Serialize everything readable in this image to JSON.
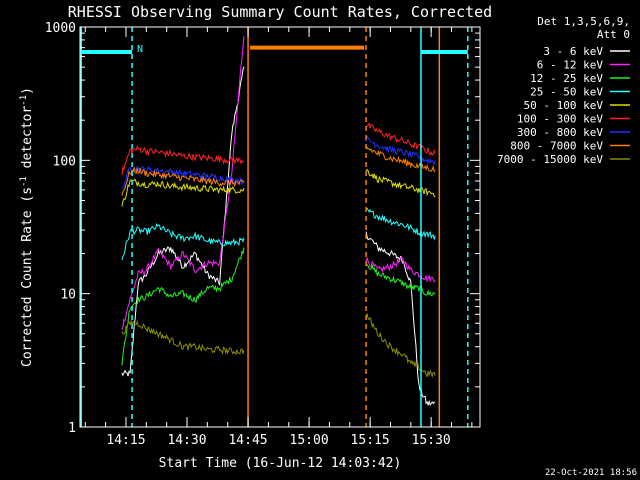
{
  "chart_data": {
    "type": "line",
    "title": "RHESSI Observing Summary Count Rates, Corrected",
    "xlabel": "Start Time (16-Jun-12 14:03:42)",
    "ylabel_main": "Corrected Count Rate (s",
    "ylabel_sup1": "-1",
    "ylabel_mid": " detector",
    "ylabel_sup2": "-1",
    "ylabel_end": ")",
    "yscale": "log",
    "ylim": [
      1,
      1000
    ],
    "y_ticks": [
      {
        "value": 1,
        "label": "1"
      },
      {
        "value": 10,
        "label": "10"
      },
      {
        "value": 100,
        "label": "100"
      },
      {
        "value": 1000,
        "label": "1000"
      }
    ],
    "xlim": [
      "14:03:42",
      "15:42:00"
    ],
    "x_ticks": [
      {
        "value": "14:15",
        "label": "14:15"
      },
      {
        "value": "14:30",
        "label": "14:30"
      },
      {
        "value": "14:45",
        "label": "14:45"
      },
      {
        "value": "15:00",
        "label": "15:00"
      },
      {
        "value": "15:15",
        "label": "15:15"
      },
      {
        "value": "15:30",
        "label": "15:30"
      }
    ],
    "legend_header": [
      "Det 1,3,5,6,9,",
      "Att 0"
    ],
    "legend_placement": "right",
    "footer_date": "22-Oct-2021 18:56",
    "night_marker_label": "N",
    "series": [
      {
        "name": "3 - 6 keV",
        "color": "#ffffff",
        "x": [
          "14:14:00",
          "14:16:00",
          "14:18:00",
          "14:20:00",
          "14:23:00",
          "14:26:00",
          "14:29:00",
          "14:32:00",
          "14:35:00",
          "14:38:00",
          "14:41:00",
          "14:44:00",
          "15:14:00",
          "15:17:00",
          "15:20:00",
          "15:23:00",
          "15:25:00",
          "15:27:00",
          "15:29:00",
          "15:31:00"
        ],
        "y": [
          2.5,
          2.5,
          12,
          14,
          20,
          22,
          16,
          20,
          14,
          12,
          160,
          500,
          28,
          22,
          20,
          18,
          12,
          2,
          1.5,
          1.5
        ]
      },
      {
        "name": "6 - 12 keV",
        "color": "#ff22ff",
        "x": [
          "14:14:00",
          "14:16:00",
          "14:18:00",
          "14:20:00",
          "14:23:00",
          "14:26:00",
          "14:29:00",
          "14:32:00",
          "14:35:00",
          "14:38:00",
          "14:41:00",
          "14:44:00",
          "15:14:00",
          "15:17:00",
          "15:20:00",
          "15:23:00",
          "15:25:00",
          "15:27:00",
          "15:29:00",
          "15:31:00"
        ],
        "y": [
          5.5,
          9,
          14,
          15,
          21,
          16,
          20,
          15,
          17,
          17,
          80,
          900,
          18,
          15,
          16,
          18,
          15,
          14,
          13,
          13
        ]
      },
      {
        "name": "12 - 25 keV",
        "color": "#22ee22",
        "x": [
          "14:14:00",
          "14:16:00",
          "14:18:00",
          "14:20:00",
          "14:23:00",
          "14:26:00",
          "14:29:00",
          "14:32:00",
          "14:35:00",
          "14:38:00",
          "14:41:00",
          "14:44:00",
          "15:14:00",
          "15:17:00",
          "15:20:00",
          "15:23:00",
          "15:25:00",
          "15:27:00",
          "15:29:00",
          "15:31:00"
        ],
        "y": [
          3,
          8,
          9,
          9.5,
          11,
          9.5,
          10,
          9,
          11,
          11,
          13,
          22,
          17,
          14,
          13,
          12,
          11,
          11,
          10,
          10
        ]
      },
      {
        "name": "25 - 50 keV",
        "color": "#22ffff",
        "x": [
          "14:14:00",
          "14:16:00",
          "14:18:00",
          "14:20:00",
          "14:23:00",
          "14:26:00",
          "14:29:00",
          "14:32:00",
          "14:35:00",
          "14:38:00",
          "14:41:00",
          "14:44:00",
          "15:14:00",
          "15:17:00",
          "15:20:00",
          "15:23:00",
          "15:25:00",
          "15:27:00",
          "15:29:00",
          "15:31:00"
        ],
        "y": [
          18,
          29,
          30,
          29,
          32,
          28,
          26,
          27,
          25,
          24,
          24,
          25,
          42,
          38,
          35,
          33,
          31,
          29,
          28,
          27
        ]
      },
      {
        "name": "50 - 100 keV",
        "color": "#dddd00",
        "x": [
          "14:14:00",
          "14:16:00",
          "14:18:00",
          "14:20:00",
          "14:23:00",
          "14:26:00",
          "14:29:00",
          "14:32:00",
          "14:35:00",
          "14:38:00",
          "14:41:00",
          "14:44:00",
          "15:14:00",
          "15:17:00",
          "15:20:00",
          "15:23:00",
          "15:25:00",
          "15:27:00",
          "15:29:00",
          "15:31:00"
        ],
        "y": [
          45,
          70,
          68,
          66,
          67,
          64,
          63,
          62,
          61,
          60,
          60,
          60,
          85,
          72,
          68,
          64,
          62,
          60,
          58,
          56
        ]
      },
      {
        "name": "100 - 300 keV",
        "color": "#ff2020",
        "x": [
          "14:14:00",
          "14:16:00",
          "14:18:00",
          "14:20:00",
          "14:23:00",
          "14:26:00",
          "14:29:00",
          "14:32:00",
          "14:35:00",
          "14:38:00",
          "14:41:00",
          "14:44:00",
          "15:14:00",
          "15:17:00",
          "15:20:00",
          "15:23:00",
          "15:25:00",
          "15:27:00",
          "15:29:00",
          "15:31:00"
        ],
        "y": [
          80,
          118,
          122,
          118,
          115,
          112,
          108,
          106,
          104,
          102,
          100,
          100,
          185,
          165,
          150,
          140,
          132,
          126,
          118,
          112
        ]
      },
      {
        "name": "300 - 800 keV",
        "color": "#2030ff",
        "x": [
          "14:14:00",
          "14:16:00",
          "14:18:00",
          "14:20:00",
          "14:23:00",
          "14:26:00",
          "14:29:00",
          "14:32:00",
          "14:35:00",
          "14:38:00",
          "14:41:00",
          "14:44:00",
          "15:14:00",
          "15:17:00",
          "15:20:00",
          "15:23:00",
          "15:25:00",
          "15:27:00",
          "15:29:00",
          "15:31:00"
        ],
        "y": [
          60,
          88,
          87,
          85,
          84,
          82,
          80,
          78,
          76,
          74,
          72,
          70,
          145,
          130,
          120,
          115,
          110,
          106,
          100,
          98
        ]
      },
      {
        "name": "800 - 7000 keV",
        "color": "#ff8000",
        "x": [
          "14:14:00",
          "14:16:00",
          "14:18:00",
          "14:20:00",
          "14:23:00",
          "14:26:00",
          "14:29:00",
          "14:32:00",
          "14:35:00",
          "14:38:00",
          "14:41:00",
          "14:44:00",
          "15:14:00",
          "15:17:00",
          "15:20:00",
          "15:23:00",
          "15:25:00",
          "15:27:00",
          "15:29:00",
          "15:31:00"
        ],
        "y": [
          55,
          82,
          84,
          80,
          78,
          76,
          74,
          72,
          70,
          68,
          68,
          67,
          125,
          112,
          104,
          98,
          94,
          90,
          88,
          85
        ]
      },
      {
        "name": "7000 - 15000 keV",
        "color": "#8b8b00",
        "x": [
          "14:14:00",
          "14:16:00",
          "14:18:00",
          "14:20:00",
          "14:23:00",
          "14:26:00",
          "14:29:00",
          "14:32:00",
          "14:35:00",
          "14:38:00",
          "14:41:00",
          "14:44:00",
          "15:14:00",
          "15:17:00",
          "15:20:00",
          "15:23:00",
          "15:25:00",
          "15:27:00",
          "15:29:00",
          "15:31:00"
        ],
        "y": [
          5,
          6,
          6,
          5.5,
          5,
          4.5,
          4,
          4,
          3.8,
          3.8,
          3.7,
          3.7,
          7,
          5,
          4,
          3.5,
          3,
          2.8,
          2.5,
          2.5
        ]
      }
    ],
    "annotations": [
      {
        "kind": "orange-solid-vline",
        "x": "14:45:00"
      },
      {
        "kind": "orange-dashed-vline",
        "x": "15:14:00"
      },
      {
        "kind": "orange-solid-vline",
        "x": "15:32:00"
      },
      {
        "kind": "orange-hbar",
        "x0": "14:45:30",
        "x1": "15:13:30",
        "y": 700
      },
      {
        "kind": "cyan-solid-vline",
        "x": "14:04:00"
      },
      {
        "kind": "cyan-dashed-vline",
        "x": "14:16:30"
      },
      {
        "kind": "cyan-solid-vline",
        "x": "15:27:30"
      },
      {
        "kind": "cyan-dashed-vline",
        "x": "15:39:00"
      },
      {
        "kind": "cyan-hbar",
        "x0": "14:04:00",
        "x1": "14:16:30",
        "y": 650
      },
      {
        "kind": "cyan-hbar",
        "x0": "15:27:30",
        "x1": "15:39:00",
        "y": 650
      }
    ]
  }
}
